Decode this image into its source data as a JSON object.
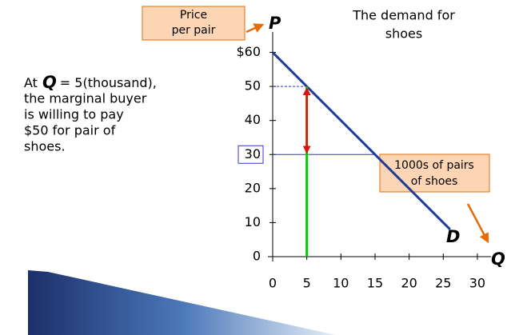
{
  "chart_data": {
    "type": "line",
    "title_lines": [
      "The demand for",
      "shoes"
    ],
    "y_axis_symbol": "P",
    "x_axis_symbol": "Q",
    "curve_label": "D",
    "y_box_lines": [
      "Price",
      "per pair"
    ],
    "x_box_lines": [
      "1000s of pairs",
      "of shoes"
    ],
    "note": {
      "prefix": "At",
      "variable": "Q",
      "lines": [
        "= 5(thousand),",
        "the marginal buyer",
        "is willing to pay",
        "$50 for pair of",
        "shoes."
      ]
    },
    "x": [
      0,
      26
    ],
    "series": [
      {
        "color": "#1f3c99",
        "values": [
          60,
          8
        ]
      }
    ],
    "marker": {
      "q": 5,
      "price": 50,
      "price_line": 30,
      "price_line_q": 15
    },
    "xlim": [
      0,
      32
    ],
    "ylim": [
      0,
      66
    ],
    "xticks": [
      0,
      5,
      10,
      15,
      20,
      25,
      30
    ],
    "yticks": [
      0,
      10,
      20,
      30,
      40,
      50,
      {
        "value": 60,
        "label": "$60"
      }
    ]
  }
}
